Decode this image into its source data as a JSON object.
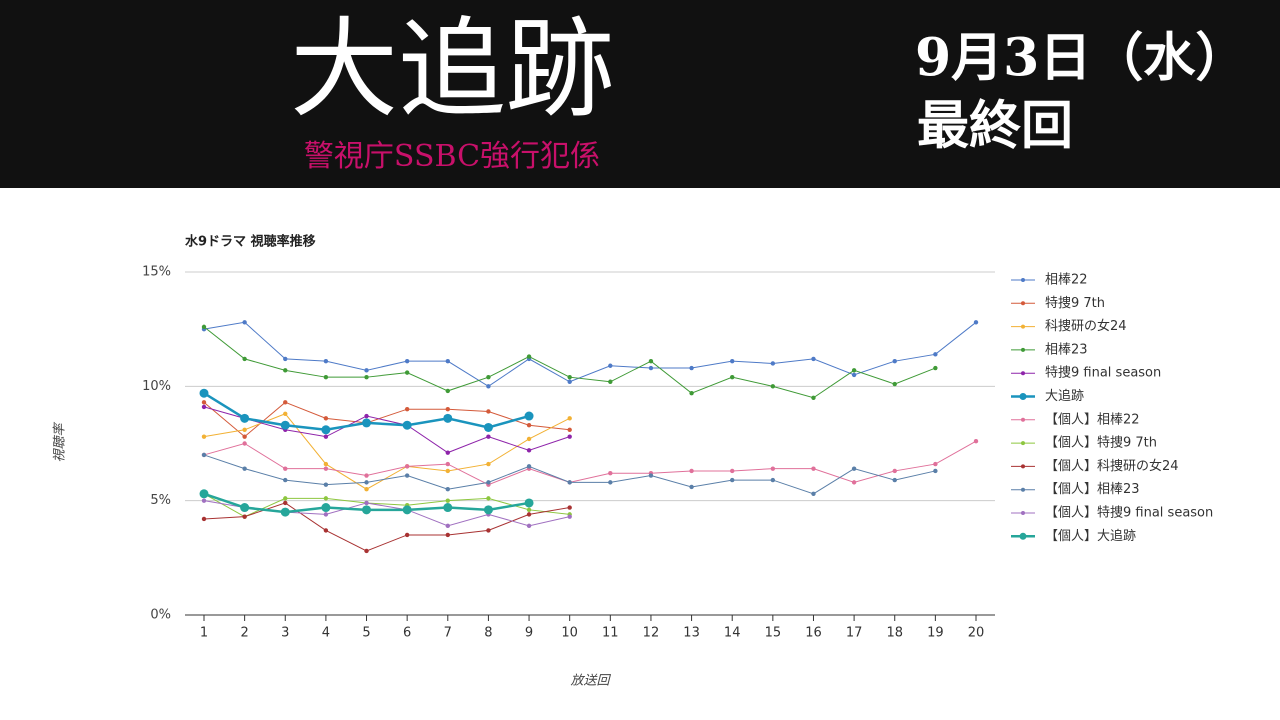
{
  "header": {
    "title": "大追跡",
    "subtitle": "警視庁SSBC強行犯係",
    "date": "9月3日（水）",
    "note": "最終回"
  },
  "chart_data": {
    "type": "line",
    "title": "水9ドラマ 視聴率推移",
    "x_label": "放送回",
    "y_label": "視聴率",
    "categories": [
      1,
      2,
      3,
      4,
      5,
      6,
      7,
      8,
      9,
      10,
      11,
      12,
      13,
      14,
      15,
      16,
      17,
      18,
      19,
      20
    ],
    "ylim": [
      0,
      15
    ],
    "yticks": [
      {
        "value": 0,
        "label": "0%"
      },
      {
        "value": 5,
        "label": "5%"
      },
      {
        "value": 10,
        "label": "10%"
      },
      {
        "value": 15,
        "label": "15%"
      }
    ],
    "grid": true,
    "legend": "right",
    "series": [
      {
        "name": "相棒22",
        "color": "#4e7ac7",
        "line_width": 1,
        "values": [
          12.5,
          12.8,
          11.2,
          11.1,
          10.7,
          11.1,
          11.1,
          10.0,
          11.2,
          10.2,
          10.9,
          10.8,
          10.8,
          11.1,
          11.0,
          11.2,
          10.5,
          11.1,
          11.4,
          12.8
        ]
      },
      {
        "name": "特捜9 7th",
        "color": "#d45a3a",
        "line_width": 1,
        "values": [
          9.3,
          7.8,
          9.3,
          8.6,
          8.4,
          9.0,
          9.0,
          8.9,
          8.3,
          8.1,
          null,
          null,
          null,
          null,
          null,
          null,
          null,
          null,
          null,
          null
        ]
      },
      {
        "name": "科捜研の女24",
        "color": "#f2b134",
        "line_width": 1,
        "values": [
          7.8,
          8.1,
          8.8,
          6.6,
          5.5,
          6.5,
          6.3,
          6.6,
          7.7,
          8.6,
          null,
          null,
          null,
          null,
          null,
          null,
          null,
          null,
          null,
          null
        ]
      },
      {
        "name": "相棒23",
        "color": "#3f9a36",
        "line_width": 1,
        "values": [
          12.6,
          11.2,
          10.7,
          10.4,
          10.4,
          10.6,
          9.8,
          10.4,
          11.3,
          10.4,
          10.2,
          11.1,
          9.7,
          10.4,
          10.0,
          9.5,
          10.7,
          10.1,
          10.8,
          null
        ]
      },
      {
        "name": "特捜9 final season",
        "color": "#8e24aa",
        "line_width": 1,
        "values": [
          9.1,
          8.6,
          8.1,
          7.8,
          8.7,
          8.3,
          7.1,
          7.8,
          7.2,
          7.8,
          null,
          null,
          null,
          null,
          null,
          null,
          null,
          null,
          null,
          null
        ]
      },
      {
        "name": "大追跡",
        "color": "#1a94bd",
        "line_width": 2.5,
        "values": [
          9.7,
          8.6,
          8.3,
          8.1,
          8.4,
          8.3,
          8.6,
          8.2,
          8.7,
          null,
          null,
          null,
          null,
          null,
          null,
          null,
          null,
          null,
          null,
          null
        ]
      },
      {
        "name": "【個人】相棒22",
        "color": "#e0709a",
        "line_width": 1,
        "values": [
          7.0,
          7.5,
          6.4,
          6.4,
          6.1,
          6.5,
          6.6,
          5.7,
          6.4,
          5.8,
          6.2,
          6.2,
          6.3,
          6.3,
          6.4,
          6.4,
          5.8,
          6.3,
          6.6,
          7.6
        ]
      },
      {
        "name": "【個人】特捜9 7th",
        "color": "#8dc63f",
        "line_width": 1,
        "values": [
          5.3,
          4.3,
          5.1,
          5.1,
          4.9,
          4.8,
          5.0,
          5.1,
          4.6,
          4.4,
          null,
          null,
          null,
          null,
          null,
          null,
          null,
          null,
          null,
          null
        ]
      },
      {
        "name": "【個人】科捜研の女24",
        "color": "#a83232",
        "line_width": 1,
        "values": [
          4.2,
          4.3,
          4.9,
          3.7,
          2.8,
          3.5,
          3.5,
          3.7,
          4.4,
          4.7,
          null,
          null,
          null,
          null,
          null,
          null,
          null,
          null,
          null,
          null
        ]
      },
      {
        "name": "【個人】相棒23",
        "color": "#5a7fa8",
        "line_width": 1,
        "values": [
          7.0,
          6.4,
          5.9,
          5.7,
          5.8,
          6.1,
          5.5,
          5.8,
          6.5,
          5.8,
          5.8,
          6.1,
          5.6,
          5.9,
          5.9,
          5.3,
          6.4,
          5.9,
          6.3,
          null
        ]
      },
      {
        "name": "【個人】特捜9 final season",
        "color": "#a070c0",
        "line_width": 1,
        "values": [
          5.0,
          4.7,
          4.5,
          4.4,
          4.9,
          4.6,
          3.9,
          4.4,
          3.9,
          4.3,
          null,
          null,
          null,
          null,
          null,
          null,
          null,
          null,
          null,
          null
        ]
      },
      {
        "name": "【個人】大追跡",
        "color": "#26a69a",
        "line_width": 2.5,
        "values": [
          5.3,
          4.7,
          4.5,
          4.7,
          4.6,
          4.6,
          4.7,
          4.6,
          4.9,
          null,
          null,
          null,
          null,
          null,
          null,
          null,
          null,
          null,
          null,
          null
        ]
      }
    ]
  }
}
